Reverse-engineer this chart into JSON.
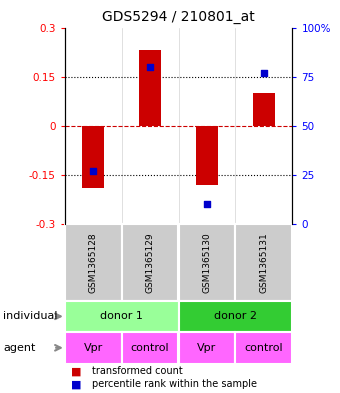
{
  "title": "GDS5294 / 210801_at",
  "categories": [
    "GSM1365128",
    "GSM1365129",
    "GSM1365130",
    "GSM1365131"
  ],
  "bar_values": [
    -0.19,
    0.23,
    -0.18,
    0.1
  ],
  "dot_values": [
    27,
    80,
    10,
    77
  ],
  "ylim_left": [
    -0.3,
    0.3
  ],
  "ylim_right": [
    0,
    100
  ],
  "yticks_left": [
    -0.3,
    -0.15,
    0,
    0.15,
    0.3
  ],
  "yticks_right": [
    0,
    25,
    50,
    75,
    100
  ],
  "ytick_labels_left": [
    "-0.3",
    "-0.15",
    "0",
    "0.15",
    "0.3"
  ],
  "ytick_labels_right": [
    "0",
    "25",
    "50",
    "75",
    "100%"
  ],
  "hlines": [
    -0.15,
    0,
    0.15
  ],
  "bar_color": "#cc0000",
  "dot_color": "#0000cc",
  "zero_line_color": "#cc0000",
  "grid_line_color": "#000000",
  "sample_row": [
    "GSM1365128",
    "GSM1365129",
    "GSM1365130",
    "GSM1365131"
  ],
  "individual_groups": [
    {
      "label": "donor 1",
      "color": "#99ff99",
      "start": 0,
      "end": 2
    },
    {
      "label": "donor 2",
      "color": "#33cc33",
      "start": 2,
      "end": 4
    }
  ],
  "agent_row": [
    "Vpr",
    "control",
    "Vpr",
    "control"
  ],
  "agent_color": "#ff66ff",
  "sample_bg_color": "#cccccc",
  "legend_red_label": "transformed count",
  "legend_blue_label": "percentile rank within the sample",
  "bar_width": 0.4
}
